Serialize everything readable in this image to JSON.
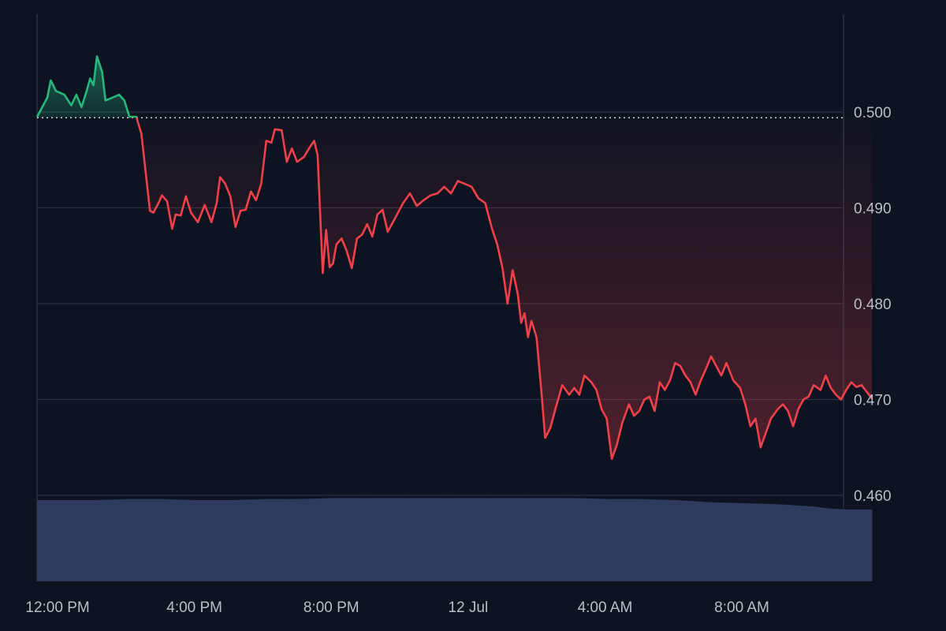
{
  "chart_data": {
    "type": "line",
    "baseline": 0.4994,
    "ylim": [
      0.451,
      0.5105
    ],
    "yticks": [
      0.46,
      0.47,
      0.48,
      0.49,
      0.5
    ],
    "ytick_labels": [
      "0.460",
      "0.470",
      "0.480",
      "0.490",
      "0.500"
    ],
    "x_range_hours": [
      -0.6,
      23.0
    ],
    "xticks": [
      {
        "label": "12:00 PM",
        "hour": 0
      },
      {
        "label": "4:00 PM",
        "hour": 4
      },
      {
        "label": "8:00 PM",
        "hour": 8
      },
      {
        "label": "12 Jul",
        "hour": 12
      },
      {
        "label": "4:00 AM",
        "hour": 16
      },
      {
        "label": "8:00 AM",
        "hour": 20
      }
    ],
    "series": [
      {
        "values": [
          [
            -0.6,
            0.4995
          ],
          [
            -0.3,
            0.5015
          ],
          [
            -0.2,
            0.5033
          ],
          [
            -0.05,
            0.5022
          ],
          [
            0.2,
            0.5018
          ],
          [
            0.4,
            0.5007
          ],
          [
            0.55,
            0.5018
          ],
          [
            0.7,
            0.5005
          ],
          [
            0.85,
            0.5022
          ],
          [
            0.95,
            0.5035
          ],
          [
            1.05,
            0.5028
          ],
          [
            1.15,
            0.5058
          ],
          [
            1.3,
            0.5042
          ],
          [
            1.4,
            0.5012
          ],
          [
            1.6,
            0.5015
          ],
          [
            1.8,
            0.5018
          ],
          [
            1.95,
            0.5012
          ],
          [
            2.1,
            0.4995
          ],
          [
            2.3,
            0.4995
          ],
          [
            2.45,
            0.4977
          ],
          [
            2.55,
            0.4945
          ],
          [
            2.7,
            0.4897
          ],
          [
            2.8,
            0.4895
          ],
          [
            2.95,
            0.4905
          ],
          [
            3.05,
            0.4913
          ],
          [
            3.2,
            0.4907
          ],
          [
            3.35,
            0.4878
          ],
          [
            3.45,
            0.4893
          ],
          [
            3.6,
            0.4892
          ],
          [
            3.75,
            0.4912
          ],
          [
            3.9,
            0.4895
          ],
          [
            4.1,
            0.4885
          ],
          [
            4.3,
            0.4903
          ],
          [
            4.5,
            0.4885
          ],
          [
            4.65,
            0.4905
          ],
          [
            4.75,
            0.4932
          ],
          [
            4.9,
            0.4925
          ],
          [
            5.05,
            0.4912
          ],
          [
            5.2,
            0.488
          ],
          [
            5.35,
            0.4897
          ],
          [
            5.5,
            0.4898
          ],
          [
            5.65,
            0.4917
          ],
          [
            5.8,
            0.4908
          ],
          [
            5.95,
            0.4925
          ],
          [
            6.1,
            0.497
          ],
          [
            6.25,
            0.4968
          ],
          [
            6.35,
            0.4982
          ],
          [
            6.55,
            0.4981
          ],
          [
            6.7,
            0.4948
          ],
          [
            6.85,
            0.4962
          ],
          [
            7.0,
            0.4948
          ],
          [
            7.2,
            0.4953
          ],
          [
            7.35,
            0.4962
          ],
          [
            7.5,
            0.497
          ],
          [
            7.6,
            0.4955
          ],
          [
            7.75,
            0.4832
          ],
          [
            7.85,
            0.4877
          ],
          [
            7.95,
            0.4838
          ],
          [
            8.05,
            0.4842
          ],
          [
            8.15,
            0.4862
          ],
          [
            8.3,
            0.4868
          ],
          [
            8.45,
            0.4855
          ],
          [
            8.6,
            0.4837
          ],
          [
            8.75,
            0.4868
          ],
          [
            8.9,
            0.4872
          ],
          [
            9.05,
            0.4883
          ],
          [
            9.2,
            0.487
          ],
          [
            9.35,
            0.4893
          ],
          [
            9.5,
            0.4898
          ],
          [
            9.65,
            0.4875
          ],
          [
            9.8,
            0.4885
          ],
          [
            9.95,
            0.4895
          ],
          [
            10.1,
            0.4905
          ],
          [
            10.3,
            0.4915
          ],
          [
            10.5,
            0.4902
          ],
          [
            10.7,
            0.4908
          ],
          [
            10.9,
            0.4913
          ],
          [
            11.1,
            0.4915
          ],
          [
            11.3,
            0.4922
          ],
          [
            11.5,
            0.4915
          ],
          [
            11.7,
            0.4928
          ],
          [
            11.9,
            0.4925
          ],
          [
            12.1,
            0.4922
          ],
          [
            12.3,
            0.491
          ],
          [
            12.5,
            0.4905
          ],
          [
            12.7,
            0.4878
          ],
          [
            12.85,
            0.4862
          ],
          [
            13.0,
            0.4838
          ],
          [
            13.15,
            0.48
          ],
          [
            13.3,
            0.4835
          ],
          [
            13.45,
            0.481
          ],
          [
            13.55,
            0.478
          ],
          [
            13.65,
            0.479
          ],
          [
            13.75,
            0.4765
          ],
          [
            13.85,
            0.4782
          ],
          [
            14.0,
            0.4765
          ],
          [
            14.15,
            0.4705
          ],
          [
            14.25,
            0.466
          ],
          [
            14.4,
            0.467
          ],
          [
            14.55,
            0.469
          ],
          [
            14.75,
            0.4715
          ],
          [
            14.95,
            0.4705
          ],
          [
            15.1,
            0.4712
          ],
          [
            15.25,
            0.4705
          ],
          [
            15.4,
            0.4725
          ],
          [
            15.6,
            0.4718
          ],
          [
            15.75,
            0.471
          ],
          [
            15.9,
            0.469
          ],
          [
            16.05,
            0.468
          ],
          [
            16.2,
            0.4638
          ],
          [
            16.35,
            0.4653
          ],
          [
            16.5,
            0.4675
          ],
          [
            16.7,
            0.4695
          ],
          [
            16.85,
            0.4683
          ],
          [
            17.0,
            0.4688
          ],
          [
            17.15,
            0.47
          ],
          [
            17.3,
            0.4703
          ],
          [
            17.45,
            0.4688
          ],
          [
            17.6,
            0.4718
          ],
          [
            17.75,
            0.471
          ],
          [
            17.9,
            0.472
          ],
          [
            18.05,
            0.4738
          ],
          [
            18.2,
            0.4735
          ],
          [
            18.35,
            0.4725
          ],
          [
            18.5,
            0.4718
          ],
          [
            18.65,
            0.4705
          ],
          [
            18.8,
            0.472
          ],
          [
            18.95,
            0.4732
          ],
          [
            19.1,
            0.4745
          ],
          [
            19.25,
            0.4735
          ],
          [
            19.4,
            0.4725
          ],
          [
            19.55,
            0.4738
          ],
          [
            19.75,
            0.472
          ],
          [
            19.95,
            0.4712
          ],
          [
            20.1,
            0.4695
          ],
          [
            20.25,
            0.4672
          ],
          [
            20.4,
            0.468
          ],
          [
            20.55,
            0.465
          ],
          [
            20.7,
            0.4665
          ],
          [
            20.85,
            0.468
          ],
          [
            21.05,
            0.469
          ],
          [
            21.2,
            0.4695
          ],
          [
            21.35,
            0.4688
          ],
          [
            21.5,
            0.4672
          ],
          [
            21.65,
            0.469
          ],
          [
            21.8,
            0.47
          ],
          [
            21.95,
            0.4703
          ],
          [
            22.1,
            0.4715
          ],
          [
            22.3,
            0.471
          ],
          [
            22.45,
            0.4725
          ],
          [
            22.6,
            0.4712
          ],
          [
            22.75,
            0.4705
          ],
          [
            22.9,
            0.47
          ],
          [
            23.05,
            0.471
          ],
          [
            23.2,
            0.4718
          ],
          [
            23.35,
            0.4713
          ],
          [
            23.5,
            0.4715
          ],
          [
            23.65,
            0.4708
          ],
          [
            23.8,
            0.4701
          ]
        ]
      }
    ],
    "volume_range": [
      0,
      100
    ],
    "volume": [
      [
        -0.6,
        78
      ],
      [
        1.0,
        78
      ],
      [
        2.0,
        79
      ],
      [
        3.0,
        79
      ],
      [
        4.0,
        78
      ],
      [
        5.0,
        78
      ],
      [
        6.0,
        79
      ],
      [
        7.0,
        79
      ],
      [
        8.0,
        80
      ],
      [
        9.0,
        80
      ],
      [
        10.0,
        80
      ],
      [
        11.0,
        80
      ],
      [
        12.0,
        80
      ],
      [
        13.0,
        80
      ],
      [
        14.0,
        80
      ],
      [
        15.0,
        80
      ],
      [
        16.0,
        79
      ],
      [
        17.0,
        79
      ],
      [
        18.0,
        78
      ],
      [
        19.0,
        76
      ],
      [
        20.0,
        75
      ],
      [
        21.0,
        74
      ],
      [
        22.0,
        72
      ],
      [
        22.5,
        70
      ],
      [
        23.0,
        69
      ],
      [
        23.8,
        69
      ]
    ],
    "colors": {
      "up": "#26b77c",
      "down": "#f0414a",
      "baseline": "#cfd3da",
      "volume": "#2f3b5e",
      "grid": "#2a3140",
      "ticks": "#b9bec9"
    }
  }
}
